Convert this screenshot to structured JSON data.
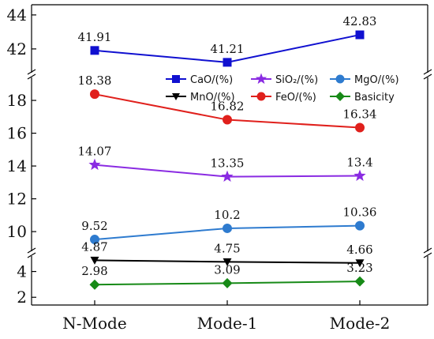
{
  "chart_data": {
    "type": "line",
    "categories": [
      "N-Mode",
      "Mode-1",
      "Mode-2"
    ],
    "y_segments": [
      {
        "name": "upper",
        "ylim": [
          40.6,
          44.6
        ],
        "ticks": [
          42,
          44
        ]
      },
      {
        "name": "middle",
        "ylim": [
          8.8,
          19.4
        ],
        "ticks": [
          10,
          12,
          14,
          16,
          18
        ]
      },
      {
        "name": "lower",
        "ylim": [
          1.4,
          5.2
        ],
        "ticks": [
          2,
          4
        ]
      }
    ],
    "series": [
      {
        "name": "CaO/(%)",
        "values": [
          41.91,
          41.21,
          42.83
        ],
        "labels": [
          "41.91",
          "41.21",
          "42.83"
        ],
        "segment": "upper",
        "color": "#1010d0",
        "marker": "square"
      },
      {
        "name": "SiO₂/(%)",
        "values": [
          14.07,
          13.35,
          13.4
        ],
        "labels": [
          "14.07",
          "13.35",
          "13.4"
        ],
        "segment": "middle",
        "color": "#8a2be2",
        "marker": "star"
      },
      {
        "name": "MgO/(%)",
        "values": [
          9.52,
          10.2,
          10.36
        ],
        "labels": [
          "9.52",
          "10.2",
          "10.36"
        ],
        "segment": "middle",
        "color": "#2e7bcf",
        "marker": "circle"
      },
      {
        "name": "MnO/(%)",
        "values": [
          4.87,
          4.75,
          4.66
        ],
        "labels": [
          "4.87",
          "4.75",
          "4.66"
        ],
        "segment": "lower",
        "color": "#000000",
        "marker": "triangle-down"
      },
      {
        "name": "FeO/(%)",
        "values": [
          18.38,
          16.82,
          16.34
        ],
        "labels": [
          "18.38",
          "16.82",
          "16.34"
        ],
        "segment": "middle",
        "color": "#e0201c",
        "marker": "circle"
      },
      {
        "name": "Basicity",
        "values": [
          2.98,
          3.09,
          3.23
        ],
        "labels": [
          "2.98",
          "3.09",
          "3.23"
        ],
        "segment": "lower",
        "color": "#178a17",
        "marker": "diamond"
      }
    ],
    "legend_position": "top-right",
    "grid": false,
    "axis_breaks": true
  }
}
